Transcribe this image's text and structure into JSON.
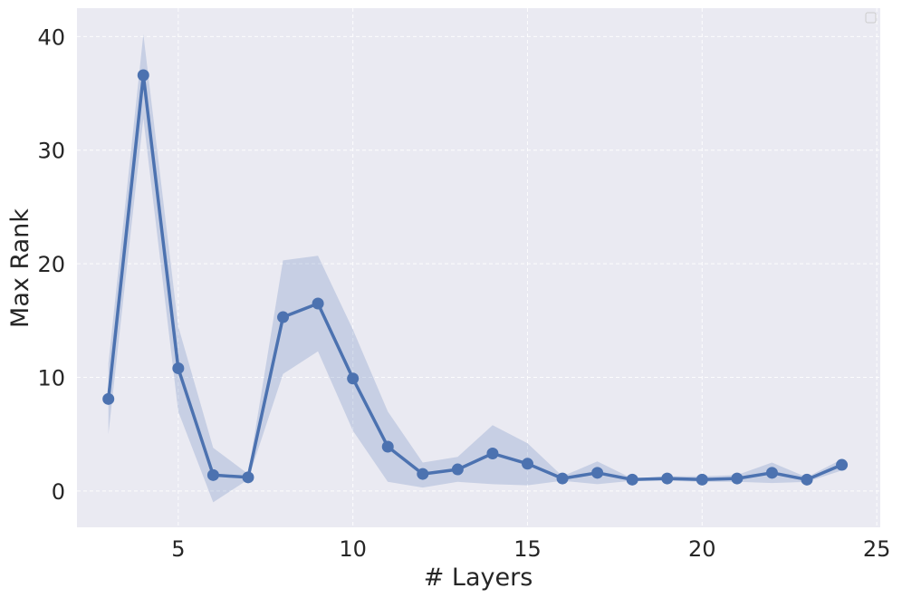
{
  "chart_data": {
    "type": "line",
    "title": "",
    "xlabel": "# Layers",
    "ylabel": "Max Rank",
    "xlim": [
      2.1,
      25.1
    ],
    "ylim": [
      -3.2,
      42.5
    ],
    "x_ticks": [
      5,
      10,
      15,
      20,
      25
    ],
    "y_ticks": [
      0,
      10,
      20,
      30,
      40
    ],
    "x_tick_labels": [
      "5",
      "10",
      "15",
      "20",
      "25"
    ],
    "y_tick_labels": [
      "0",
      "10",
      "20",
      "30",
      "40"
    ],
    "grid": true,
    "legend": {
      "placement": "top-right",
      "entries": []
    },
    "series": [
      {
        "x": [
          3,
          4,
          5,
          6,
          7,
          8,
          9,
          10,
          11,
          12,
          13,
          14,
          15,
          16,
          17,
          18,
          19,
          20,
          21,
          22,
          23,
          24
        ],
        "y": [
          8.1,
          36.6,
          10.8,
          1.4,
          1.2,
          15.3,
          16.5,
          9.9,
          3.9,
          1.5,
          1.9,
          3.3,
          2.4,
          1.1,
          1.6,
          1.0,
          1.1,
          1.0,
          1.1,
          1.6,
          1.0,
          2.3
        ],
        "ci_lower": [
          5.0,
          32.8,
          7.0,
          -1.0,
          1.0,
          10.3,
          12.3,
          5.3,
          0.8,
          0.3,
          0.8,
          0.6,
          0.5,
          0.9,
          0.6,
          0.9,
          0.9,
          0.8,
          0.8,
          0.7,
          0.8,
          1.8
        ],
        "ci_upper": [
          11.2,
          40.2,
          14.5,
          3.8,
          1.5,
          20.3,
          20.7,
          14.2,
          7.0,
          2.5,
          3.0,
          5.8,
          4.2,
          1.3,
          2.6,
          1.1,
          1.3,
          1.3,
          1.4,
          2.5,
          1.2,
          2.8
        ],
        "color": "#4c72b0",
        "band_color": "#4c72b0"
      }
    ],
    "colors": {
      "plot_background": "#eaeaf2",
      "figure_background": "#ffffff",
      "grid": "#ffffff",
      "text": "#262626"
    }
  }
}
